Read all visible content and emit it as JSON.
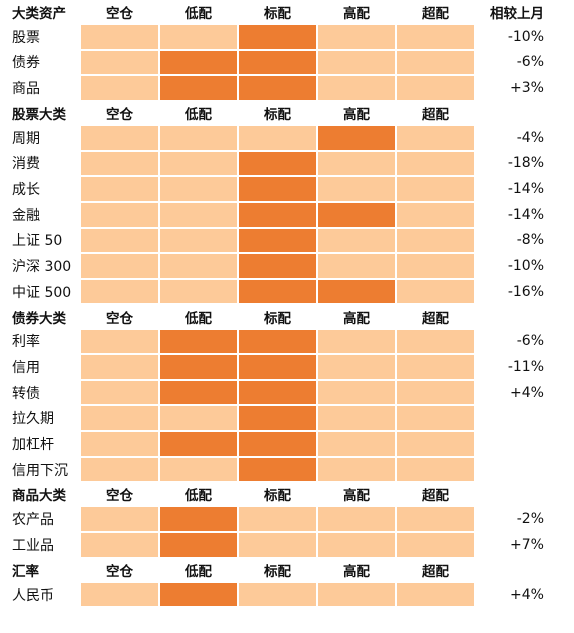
{
  "columns": [
    "空仓",
    "低配",
    "标配",
    "高配",
    "超配"
  ],
  "change_header": "相较上月",
  "sections": [
    {
      "title": "大类资产",
      "show_change_header": true,
      "rows": [
        {
          "label": "股票",
          "highlight": [
            2
          ],
          "change": "-10%"
        },
        {
          "label": "债券",
          "highlight": [
            1,
            2
          ],
          "change": "-6%"
        },
        {
          "label": "商品",
          "highlight": [
            1,
            2
          ],
          "change": "+3%"
        }
      ]
    },
    {
      "title": "股票大类",
      "rows": [
        {
          "label": "周期",
          "highlight": [
            3
          ],
          "change": "-4%"
        },
        {
          "label": "消费",
          "highlight": [
            2
          ],
          "change": "-18%"
        },
        {
          "label": "成长",
          "highlight": [
            2
          ],
          "change": "-14%"
        },
        {
          "label": "金融",
          "highlight": [
            2,
            3
          ],
          "change": "-14%"
        },
        {
          "label": "上证 50",
          "highlight": [
            2
          ],
          "change": "-8%"
        },
        {
          "label": "沪深 300",
          "highlight": [
            2
          ],
          "change": "-10%"
        },
        {
          "label": "中证 500",
          "highlight": [
            2,
            3
          ],
          "change": "-16%"
        }
      ]
    },
    {
      "title": "债券大类",
      "rows": [
        {
          "label": "利率",
          "highlight": [
            1,
            2
          ],
          "change": "-6%"
        },
        {
          "label": "信用",
          "highlight": [
            1,
            2
          ],
          "change": "-11%"
        },
        {
          "label": "转债",
          "highlight": [
            1,
            2
          ],
          "change": "+4%"
        },
        {
          "label": "拉久期",
          "highlight": [
            2
          ]
        },
        {
          "label": "加杠杆",
          "highlight": [
            1,
            2
          ]
        },
        {
          "label": "信用下沉",
          "highlight": [
            2
          ]
        }
      ]
    },
    {
      "title": "商品大类",
      "rows": [
        {
          "label": "农产品",
          "highlight": [
            1
          ],
          "change": "-2%"
        },
        {
          "label": "工业品",
          "highlight": [
            1
          ],
          "change": "+7%"
        }
      ]
    },
    {
      "title": "汇率",
      "rows": [
        {
          "label": "人民币",
          "highlight": [
            1
          ],
          "change": "+4%"
        }
      ]
    }
  ],
  "colors": {
    "base": "#fdca99",
    "highlight": "#ed7d31"
  }
}
